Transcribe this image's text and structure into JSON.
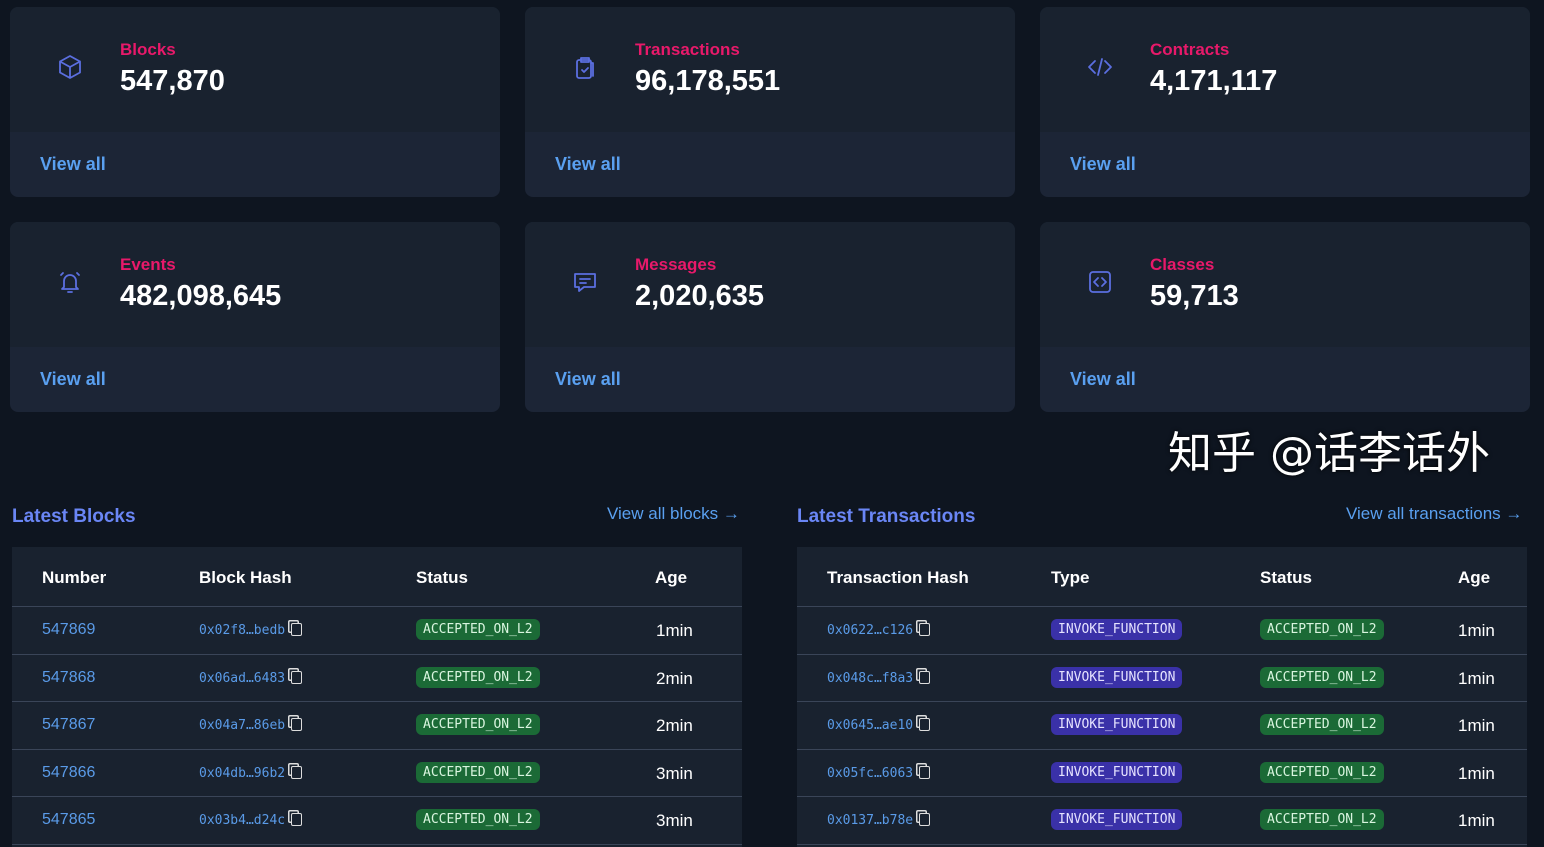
{
  "stats": [
    {
      "label": "Blocks",
      "value": "547,870",
      "icon": "cube-icon",
      "link": "View all"
    },
    {
      "label": "Transactions",
      "value": "96,178,551",
      "icon": "clipboard-icon",
      "link": "View all"
    },
    {
      "label": "Contracts",
      "value": "4,171,117",
      "icon": "code-icon",
      "link": "View all"
    },
    {
      "label": "Events",
      "value": "482,098,645",
      "icon": "bell-icon",
      "link": "View all"
    },
    {
      "label": "Messages",
      "value": "2,020,635",
      "icon": "message-icon",
      "link": "View all"
    },
    {
      "label": "Classes",
      "value": "59,713",
      "icon": "code-square-icon",
      "link": "View all"
    }
  ],
  "blocks": {
    "title": "Latest Blocks",
    "link": "View all blocks →",
    "headers": [
      "Number",
      "Block Hash",
      "Status",
      "Age"
    ],
    "rows": [
      {
        "number": "547869",
        "hash": "0x02f8…bedb",
        "status": "ACCEPTED_ON_L2",
        "age": "1min"
      },
      {
        "number": "547868",
        "hash": "0x06ad…6483",
        "status": "ACCEPTED_ON_L2",
        "age": "2min"
      },
      {
        "number": "547867",
        "hash": "0x04a7…86eb",
        "status": "ACCEPTED_ON_L2",
        "age": "2min"
      },
      {
        "number": "547866",
        "hash": "0x04db…96b2",
        "status": "ACCEPTED_ON_L2",
        "age": "3min"
      },
      {
        "number": "547865",
        "hash": "0x03b4…d24c",
        "status": "ACCEPTED_ON_L2",
        "age": "3min"
      }
    ]
  },
  "transactions": {
    "title": "Latest Transactions",
    "link": "View all transactions →",
    "headers": [
      "Transaction Hash",
      "Type",
      "Status",
      "Age"
    ],
    "rows": [
      {
        "hash": "0x0622…c126",
        "type": "INVOKE_FUNCTION",
        "status": "ACCEPTED_ON_L2",
        "age": "1min"
      },
      {
        "hash": "0x048c…f8a3",
        "type": "INVOKE_FUNCTION",
        "status": "ACCEPTED_ON_L2",
        "age": "1min"
      },
      {
        "hash": "0x0645…ae10",
        "type": "INVOKE_FUNCTION",
        "status": "ACCEPTED_ON_L2",
        "age": "1min"
      },
      {
        "hash": "0x05fc…6063",
        "type": "INVOKE_FUNCTION",
        "status": "ACCEPTED_ON_L2",
        "age": "1min"
      },
      {
        "hash": "0x0137…b78e",
        "type": "INVOKE_FUNCTION",
        "status": "ACCEPTED_ON_L2",
        "age": "1min"
      }
    ]
  },
  "watermark": "知乎 @话李话外"
}
